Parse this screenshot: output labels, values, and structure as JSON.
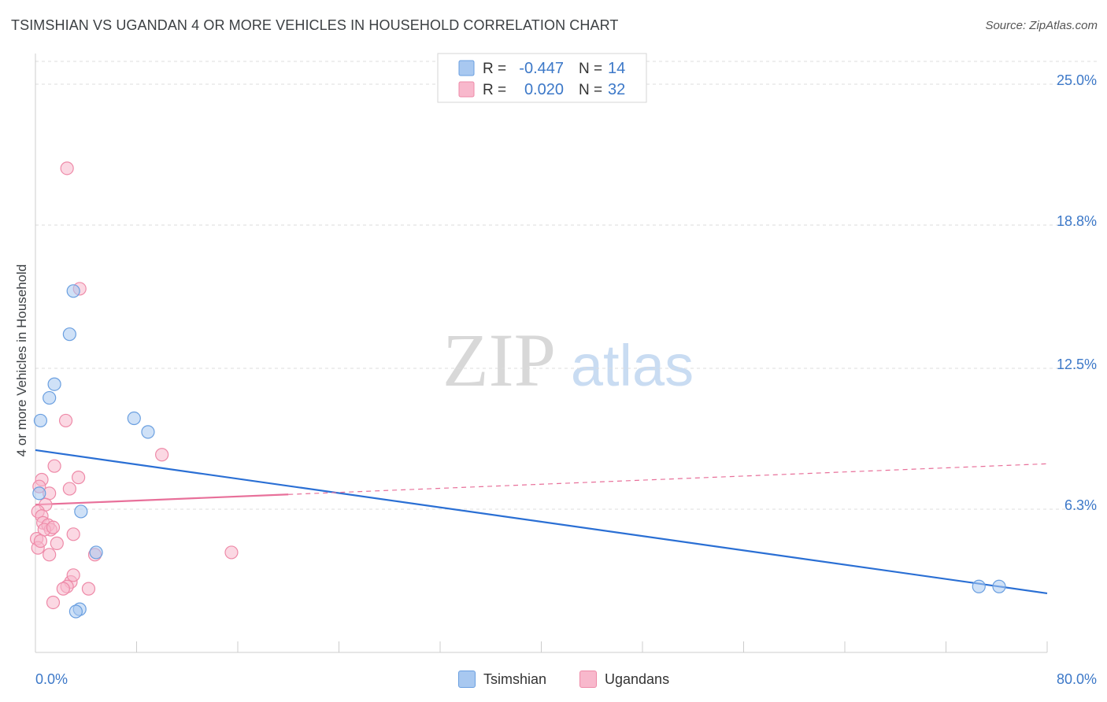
{
  "title": "TSIMSHIAN VS UGANDAN 4 OR MORE VEHICLES IN HOUSEHOLD CORRELATION CHART",
  "source": "Source: ZipAtlas.com",
  "watermark": {
    "zip": "ZIP",
    "atlas": "atlas"
  },
  "colors": {
    "tsimshian_fill": "#a8c8f0",
    "tsimshian_stroke": "#6a9fe0",
    "tsimshian_line": "#2a6fd4",
    "ugandans_fill": "#f8b8cc",
    "ugandans_stroke": "#ee8aa8",
    "ugandans_line": "#e8709a",
    "axis_label": "#3c78c8",
    "grid": "#dddddd"
  },
  "legend_top": {
    "rows": [
      {
        "series": "Tsimshian",
        "r_label": "R =",
        "r_value": "-0.447",
        "n_label": "N =",
        "n_value": "14"
      },
      {
        "series": "Ugandans",
        "r_label": "R =",
        "r_value": " 0.020",
        "n_label": "N =",
        "n_value": "32"
      }
    ]
  },
  "chart_data": {
    "type": "scatter",
    "title": "TSIMSHIAN VS UGANDAN 4 OR MORE VEHICLES IN HOUSEHOLD CORRELATION CHART",
    "xlabel": "",
    "ylabel": "4 or more Vehicles in Household",
    "xlim": [
      0,
      80
    ],
    "ylim": [
      0,
      25
    ],
    "x_tick_labels": [
      "0.0%",
      "80.0%"
    ],
    "y_ticks": [
      6.3,
      12.5,
      18.8,
      25.0
    ],
    "y_tick_labels": [
      "6.3%",
      "12.5%",
      "18.8%",
      "25.0%"
    ],
    "grid": "horizontal dashed",
    "legend_position": "top-center and bottom",
    "series": [
      {
        "name": "Tsimshian",
        "points": [
          [
            0.4,
            10.2
          ],
          [
            0.3,
            7.0
          ],
          [
            1.1,
            11.2
          ],
          [
            1.5,
            11.8
          ],
          [
            2.7,
            14.0
          ],
          [
            3.0,
            15.9
          ],
          [
            3.6,
            6.2
          ],
          [
            4.8,
            4.4
          ],
          [
            7.8,
            10.3
          ],
          [
            8.9,
            9.7
          ],
          [
            3.5,
            1.9
          ],
          [
            3.2,
            1.8
          ],
          [
            74.6,
            2.9
          ],
          [
            76.2,
            2.9
          ]
        ],
        "trend": {
          "x": [
            0,
            80
          ],
          "y": [
            8.9,
            2.6
          ],
          "style": "solid"
        }
      },
      {
        "name": "Ugandans",
        "points": [
          [
            2.5,
            21.3
          ],
          [
            3.5,
            16.0
          ],
          [
            2.4,
            10.2
          ],
          [
            10.0,
            8.7
          ],
          [
            1.5,
            8.2
          ],
          [
            3.4,
            7.7
          ],
          [
            0.5,
            7.6
          ],
          [
            0.3,
            7.3
          ],
          [
            2.7,
            7.2
          ],
          [
            1.1,
            7.0
          ],
          [
            0.8,
            6.5
          ],
          [
            0.2,
            6.2
          ],
          [
            0.5,
            6.0
          ],
          [
            0.6,
            5.7
          ],
          [
            1.0,
            5.6
          ],
          [
            1.2,
            5.4
          ],
          [
            0.7,
            5.4
          ],
          [
            1.4,
            5.5
          ],
          [
            3.0,
            5.2
          ],
          [
            0.1,
            5.0
          ],
          [
            1.7,
            4.8
          ],
          [
            1.1,
            4.3
          ],
          [
            4.7,
            4.3
          ],
          [
            15.5,
            4.4
          ],
          [
            2.8,
            3.1
          ],
          [
            2.5,
            2.9
          ],
          [
            2.2,
            2.8
          ],
          [
            4.2,
            2.8
          ],
          [
            3.0,
            3.4
          ],
          [
            1.4,
            2.2
          ],
          [
            0.2,
            4.6
          ],
          [
            0.4,
            4.9
          ]
        ],
        "trend": {
          "x": [
            0,
            80
          ],
          "y": [
            6.5,
            8.3
          ],
          "style": "solid to x=20, dashed beyond"
        }
      }
    ]
  }
}
